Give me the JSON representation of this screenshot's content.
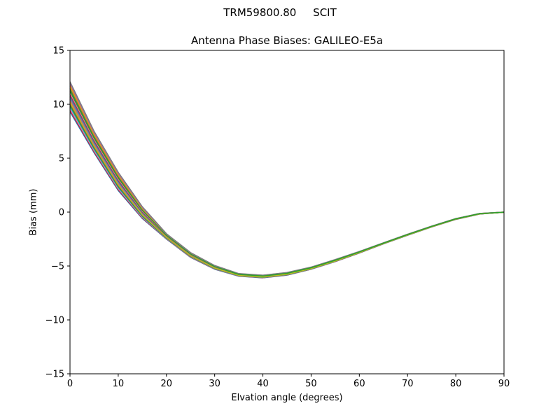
{
  "figure": {
    "suptitle": "TRM59800.80     SCIT",
    "title": "Antenna Phase Biases: GALILEO-E5a",
    "xlabel": "Elvation angle (degrees)",
    "ylabel": "Bias (mm)"
  },
  "chart_data": {
    "type": "line",
    "title": "Antenna Phase Biases: GALILEO-E5a",
    "suptitle": "TRM59800.80     SCIT",
    "xlabel": "Elvation angle (degrees)",
    "ylabel": "Bias (mm)",
    "xlim": [
      0,
      90
    ],
    "ylim": [
      -15,
      15
    ],
    "xticks": [
      0,
      10,
      20,
      30,
      40,
      50,
      60,
      70,
      80,
      90
    ],
    "yticks": [
      -15,
      -10,
      -5,
      0,
      5,
      10,
      15
    ],
    "grid": false,
    "legend": null,
    "x": [
      0,
      5,
      10,
      15,
      20,
      25,
      30,
      35,
      40,
      45,
      50,
      55,
      60,
      65,
      70,
      75,
      80,
      85,
      90
    ],
    "envelope": {
      "upper": [
        12.1,
        7.5,
        3.7,
        0.5,
        -2.0,
        -3.75,
        -4.95,
        -5.7,
        -5.85,
        -5.6,
        -5.1,
        -4.4,
        -3.65,
        -2.85,
        -2.05,
        -1.3,
        -0.6,
        -0.12,
        0.0
      ],
      "lower": [
        9.3,
        5.5,
        2.0,
        -0.6,
        -2.5,
        -4.2,
        -5.3,
        -5.95,
        -6.1,
        -5.85,
        -5.3,
        -4.6,
        -3.8,
        -2.95,
        -2.15,
        -1.38,
        -0.68,
        -0.18,
        -0.02
      ]
    },
    "series_count": 20,
    "series_colors": [
      "#1f77b4",
      "#ff7f0e",
      "#2ca02c",
      "#d62728",
      "#9467bd",
      "#8c564b",
      "#e377c2",
      "#7f7f7f",
      "#bcbd22",
      "#17becf"
    ],
    "note": "Bundle of ~20 nearly identical azimuth curves spanning the envelope; drawn evenly between lower and upper bounds, last drawn series green (#2ca02c)."
  },
  "axes": {
    "frame_color": "#000000",
    "tick_label_color": "#000000"
  }
}
